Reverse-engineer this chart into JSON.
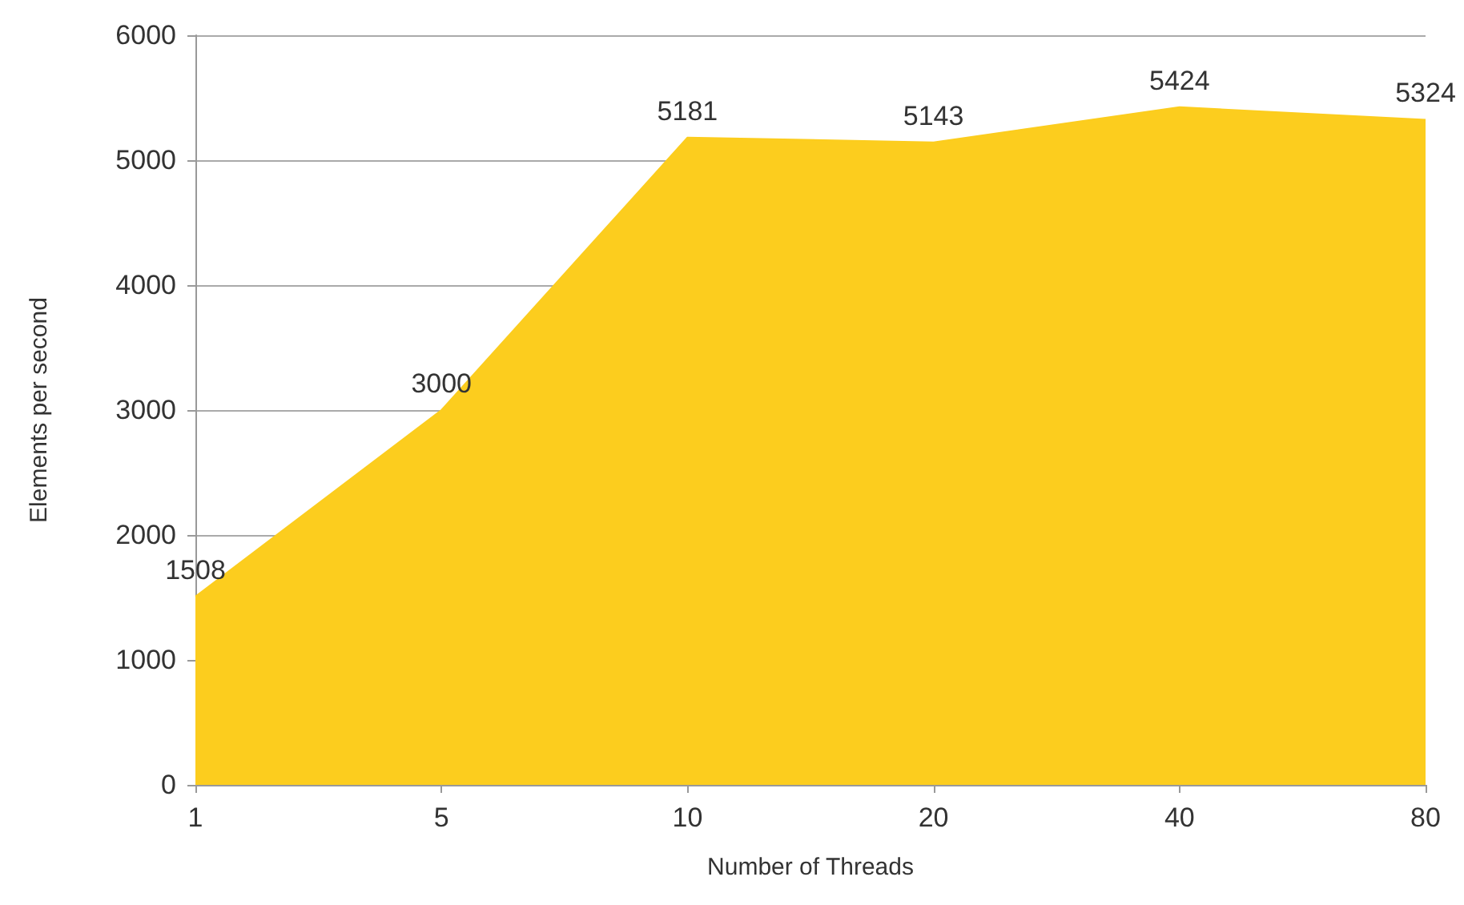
{
  "chart_data": {
    "type": "area",
    "xlabel": "Number of Threads",
    "ylabel": "Elements per second",
    "categories": [
      "1",
      "5",
      "10",
      "20",
      "40",
      "80"
    ],
    "series": [
      {
        "color": "#fccd1e",
        "values": [
          1508,
          3000,
          5181,
          5143,
          5424,
          5324
        ]
      }
    ],
    "ylim": [
      0,
      6000
    ],
    "yticks": [
      0,
      1000,
      2000,
      3000,
      4000,
      5000,
      6000
    ],
    "grid": "y",
    "data_labels": true,
    "marker": "none"
  }
}
